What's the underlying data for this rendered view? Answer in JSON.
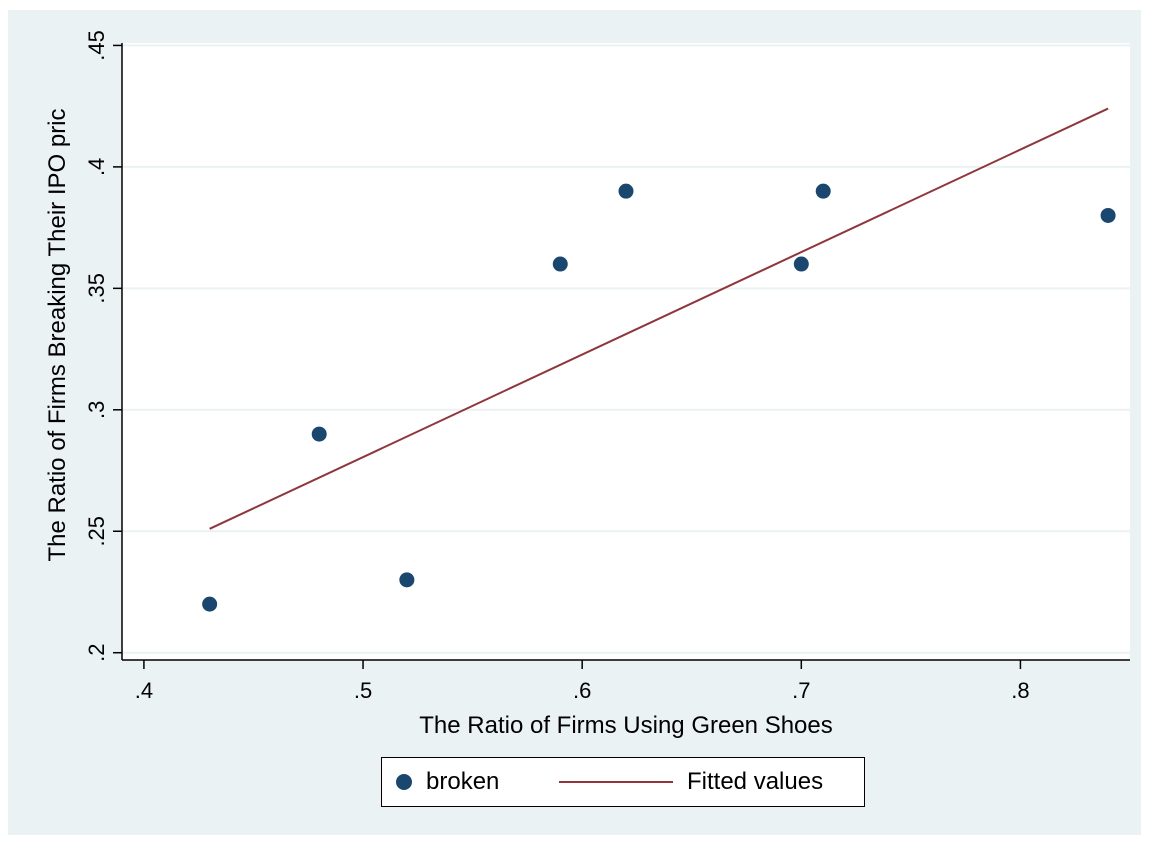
{
  "chart_data": {
    "type": "scatter",
    "title": "",
    "xlabel": "The Ratio of Firms Using Green Shoes",
    "ylabel": "The Ratio of Firms Breaking Their IPO pric",
    "xlim": [
      0.39,
      0.85
    ],
    "ylim": [
      0.197,
      0.451
    ],
    "xticks": [
      0.4,
      0.5,
      0.6,
      0.7,
      0.8
    ],
    "xtick_labels": [
      ".4",
      ".5",
      ".6",
      ".7",
      ".8"
    ],
    "yticks": [
      0.2,
      0.25,
      0.3,
      0.35,
      0.4,
      0.45
    ],
    "ytick_labels": [
      ".2",
      ".25",
      ".3",
      ".35",
      ".4",
      ".45"
    ],
    "grid": true,
    "legend_position": "bottom",
    "series": [
      {
        "name": "broken",
        "kind": "scatter",
        "color": "#1a476f",
        "points": [
          {
            "x": 0.43,
            "y": 0.22
          },
          {
            "x": 0.48,
            "y": 0.29
          },
          {
            "x": 0.52,
            "y": 0.23
          },
          {
            "x": 0.59,
            "y": 0.36
          },
          {
            "x": 0.62,
            "y": 0.39
          },
          {
            "x": 0.7,
            "y": 0.36
          },
          {
            "x": 0.71,
            "y": 0.39
          },
          {
            "x": 0.84,
            "y": 0.38
          }
        ]
      },
      {
        "name": "Fitted values",
        "kind": "line",
        "color": "#90353b",
        "points": [
          {
            "x": 0.43,
            "y": 0.251
          },
          {
            "x": 0.84,
            "y": 0.424
          }
        ]
      }
    ]
  },
  "colors": {
    "background": "#eaf2f3",
    "plot_background": "#ffffff",
    "grid": "#eaf2f3"
  }
}
